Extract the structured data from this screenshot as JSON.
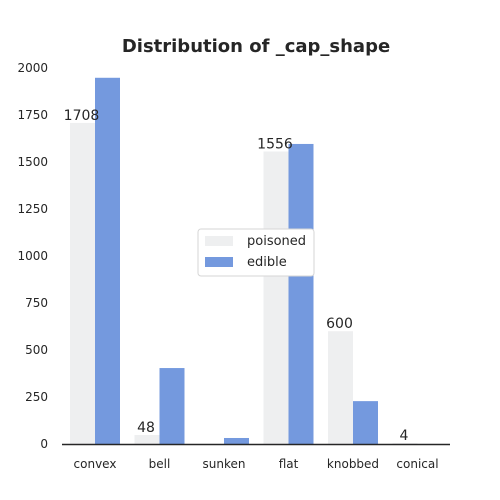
{
  "chart_data": {
    "type": "bar",
    "title": "Distribution of _cap_shape",
    "xlabel": "",
    "ylabel": "",
    "categories": [
      "convex",
      "bell",
      "sunken",
      "flat",
      "knobbed",
      "conical"
    ],
    "series": [
      {
        "name": "poisoned",
        "values": [
          1708,
          48,
          0,
          1556,
          600,
          4
        ],
        "color": "#eeeff0"
      },
      {
        "name": "edible",
        "values": [
          1948,
          404,
          32,
          1596,
          228,
          0
        ],
        "color": "#7499de"
      }
    ],
    "data_labels": [
      "1708",
      "48",
      "",
      "1556",
      "600",
      "4"
    ],
    "ylim": [
      0,
      2000
    ],
    "yticks": [
      "0",
      "250",
      "500",
      "750",
      "1000",
      "1250",
      "1500",
      "1750",
      "2000"
    ],
    "grid": false,
    "legend_position": "center-right"
  }
}
